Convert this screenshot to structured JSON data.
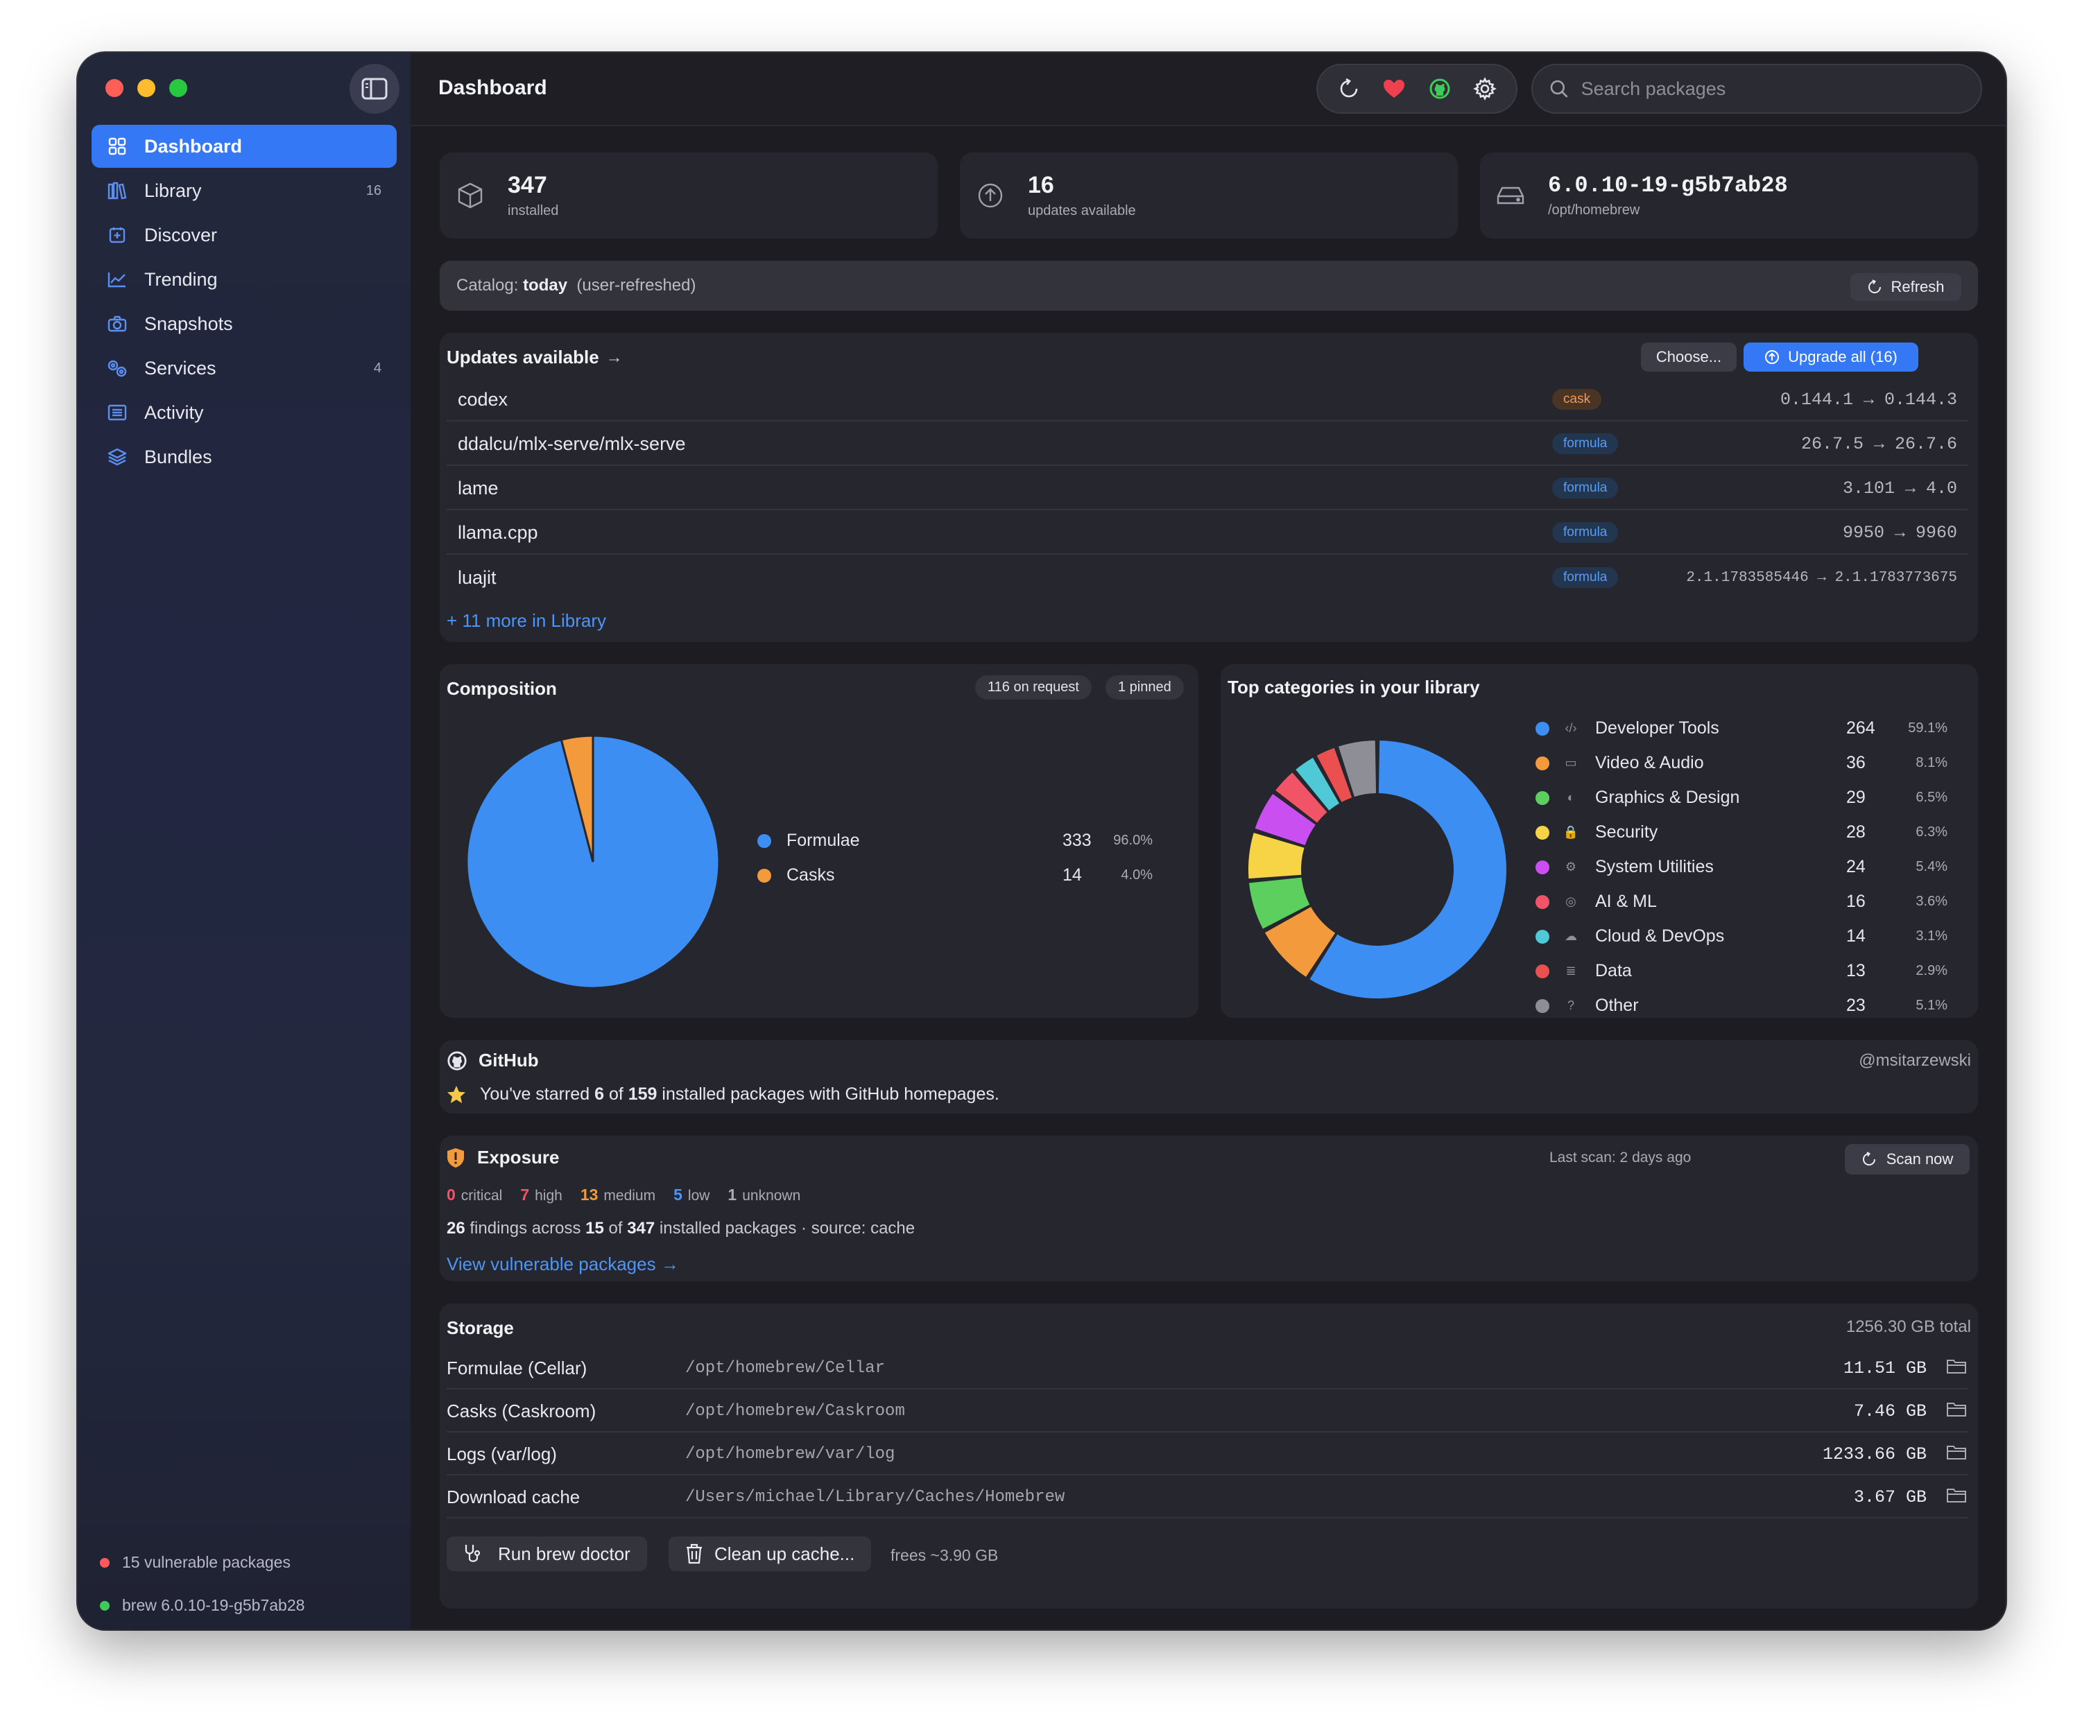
{
  "sidebar": {
    "items": [
      {
        "label": "Dashboard",
        "count": ""
      },
      {
        "label": "Library",
        "count": "16"
      },
      {
        "label": "Discover",
        "count": ""
      },
      {
        "label": "Trending",
        "count": ""
      },
      {
        "label": "Snapshots",
        "count": ""
      },
      {
        "label": "Services",
        "count": "4"
      },
      {
        "label": "Activity",
        "count": ""
      },
      {
        "label": "Bundles",
        "count": ""
      }
    ],
    "footer_vulnerable": "15 vulnerable packages",
    "footer_brew": "brew 6.0.10-19-g5b7ab28"
  },
  "header": {
    "title": "Dashboard",
    "search_placeholder": "Search packages"
  },
  "stats": [
    {
      "value": "347",
      "label": "installed"
    },
    {
      "value": "16",
      "label": "updates available"
    },
    {
      "value": "6.0.10-19-g5b7ab28",
      "label": "/opt/homebrew"
    }
  ],
  "catalog": {
    "prefix": "Catalog:",
    "value": "today",
    "suffix": "(user-refreshed)",
    "refresh_label": "Refresh"
  },
  "updates": {
    "title": "Updates available",
    "arrow": "→",
    "choose_label": "Choose...",
    "upgrade_label": "Upgrade all (16)",
    "rows": [
      {
        "name": "codex",
        "type": "cask",
        "version": "0.144.1 → 0.144.3"
      },
      {
        "name": "ddalcu/mlx-serve/mlx-serve",
        "type": "formula",
        "version": "26.7.5 → 26.7.6"
      },
      {
        "name": "lame",
        "type": "formula",
        "version": "3.101 → 4.0"
      },
      {
        "name": "llama.cpp",
        "type": "formula",
        "version": "9950 → 9960"
      },
      {
        "name": "luajit",
        "type": "formula",
        "version": "2.1.1783585446 → 2.1.1783773675"
      }
    ],
    "more_link": "+ 11 more in Library"
  },
  "composition": {
    "title": "Composition",
    "pill_request": "116 on request",
    "pill_pinned": "1 pinned",
    "colors": {
      "formulae": "#3d8ef2",
      "casks": "#f39a3d"
    }
  },
  "categories": {
    "title": "Top categories in your library"
  },
  "chart_data": [
    {
      "type": "pie",
      "title": "Composition",
      "categories": [
        "Formulae",
        "Casks"
      ],
      "values": [
        333,
        14
      ],
      "percents": [
        "96.0%",
        "4.0%"
      ],
      "colors": [
        "#3d8ef2",
        "#f39a3d"
      ],
      "legend": "right"
    },
    {
      "type": "pie",
      "variant": "donut",
      "title": "Top categories in your library",
      "categories": [
        "Developer Tools",
        "Video & Audio",
        "Graphics & Design",
        "Security",
        "System Utilities",
        "AI & ML",
        "Cloud & DevOps",
        "Data",
        "Other"
      ],
      "values": [
        264,
        36,
        29,
        28,
        24,
        16,
        14,
        13,
        23
      ],
      "percents": [
        "59.1%",
        "8.1%",
        "6.5%",
        "6.3%",
        "5.4%",
        "3.6%",
        "3.1%",
        "2.9%",
        "5.1%"
      ],
      "colors": [
        "#3d8ef2",
        "#f39a3d",
        "#5ccf5f",
        "#f6d445",
        "#c94ff0",
        "#f05466",
        "#4fc9d6",
        "#e9504f",
        "#8e8e96"
      ],
      "icons": [
        "code-icon",
        "video-icon",
        "palette-icon",
        "lock-icon",
        "gear-icon",
        "brain-icon",
        "cloud-icon",
        "database-icon",
        "question-icon"
      ],
      "legend": "right"
    }
  ],
  "github": {
    "title": "GitHub",
    "user": "@msitarzewski",
    "text_before": "You've starred",
    "starred": "6",
    "text_mid": "of",
    "total": "159",
    "text_after": "installed packages with GitHub homepages."
  },
  "exposure": {
    "title": "Exposure",
    "last_scan": "Last scan: 2 days ago",
    "scan_label": "Scan now",
    "severities": [
      {
        "count": "0",
        "label": "critical",
        "color": "#f05466"
      },
      {
        "count": "7",
        "label": "high",
        "color": "#f05466"
      },
      {
        "count": "13",
        "label": "medium",
        "color": "#f39a3d"
      },
      {
        "count": "5",
        "label": "low",
        "color": "#4d95f6"
      },
      {
        "count": "1",
        "label": "unknown",
        "color": "#a9abb6"
      }
    ],
    "findings": "26",
    "findings_text": "findings across",
    "affected": "15",
    "of_text": "of",
    "installed": "347",
    "tail": "installed packages · source: cache",
    "link": "View vulnerable packages →"
  },
  "storage": {
    "title": "Storage",
    "total": "1256.30 GB total",
    "rows": [
      {
        "label": "Formulae (Cellar)",
        "path": "/opt/homebrew/Cellar",
        "size": "11.51 GB"
      },
      {
        "label": "Casks (Caskroom)",
        "path": "/opt/homebrew/Caskroom",
        "size": "7.46 GB"
      },
      {
        "label": "Logs (var/log)",
        "path": "/opt/homebrew/var/log",
        "size": "1233.66 GB"
      },
      {
        "label": "Download cache",
        "path": "/Users/michael/Library/Caches/Homebrew",
        "size": "3.67 GB"
      }
    ],
    "doctor_label": "Run brew doctor",
    "cleanup_label": "Clean up cache...",
    "frees_text": "frees ~3.90 GB"
  }
}
